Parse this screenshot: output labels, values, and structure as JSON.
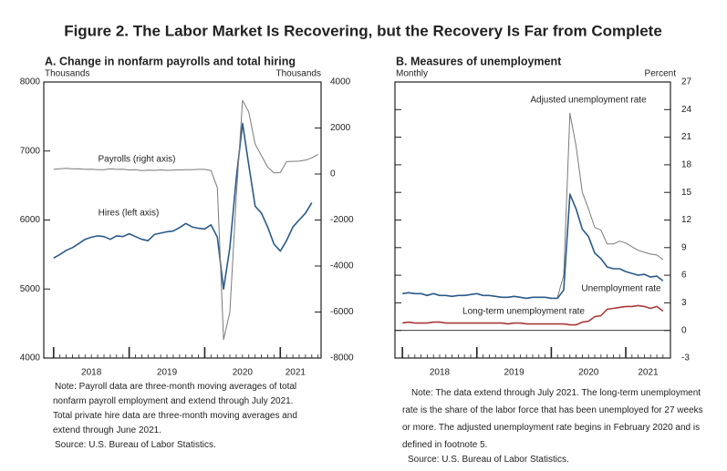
{
  "figure_title": "Figure 2. The Labor Market Is Recovering, but the Recovery Is Far from Complete",
  "chart_data": [
    {
      "type": "line",
      "title": "A. Change in nonfarm payrolls and total hiring",
      "y_label": "Thousands",
      "y2_label": "Thousands",
      "y_tick_color": "#2b5a8a",
      "x": [
        2018,
        2018.083,
        2018.167,
        2018.25,
        2018.333,
        2018.417,
        2018.5,
        2018.583,
        2018.667,
        2018.75,
        2018.833,
        2018.917,
        2019,
        2019.083,
        2019.167,
        2019.25,
        2019.333,
        2019.417,
        2019.5,
        2019.583,
        2019.667,
        2019.75,
        2019.833,
        2019.917,
        2020,
        2020.083,
        2020.167,
        2020.25,
        2020.333,
        2020.417,
        2020.5,
        2020.583,
        2020.667,
        2020.75,
        2020.833,
        2020.917,
        2021,
        2021.083,
        2021.167,
        2021.25,
        2021.333,
        2021.417,
        2021.5
      ],
      "xlim": [
        2017.87,
        2021.54
      ],
      "xticks": [
        {
          "value": 2018.5,
          "label": "2018"
        },
        {
          "value": 2019.5,
          "label": "2019"
        },
        {
          "value": 2020.5,
          "label": "2020"
        },
        {
          "value": 2021.2,
          "label": "2021"
        }
      ],
      "ylim": [
        4000,
        8000
      ],
      "yticks": [
        4000,
        5000,
        6000,
        7000,
        8000
      ],
      "y2lim": [
        -8000,
        4000
      ],
      "y2ticks": [
        -8000,
        -6000,
        -4000,
        -2000,
        0,
        2000,
        4000
      ],
      "series": [
        {
          "name": "Hires (left axis)",
          "color": "#2b5a8a",
          "width": 1.6,
          "axis": "y",
          "values": [
            5450,
            5500,
            5560,
            5600,
            5660,
            5720,
            5750,
            5770,
            5760,
            5720,
            5770,
            5760,
            5800,
            5760,
            5720,
            5700,
            5790,
            5810,
            5830,
            5840,
            5890,
            5950,
            5900,
            5880,
            5870,
            5930,
            5750,
            5000,
            5600,
            6600,
            7400,
            6800,
            6200,
            6100,
            5900,
            5650,
            5550,
            5700,
            5900,
            6000,
            6100,
            6250,
            null
          ]
        },
        {
          "name": "Payrolls (right axis)",
          "color": "#7a7a7a",
          "label_color": "#222",
          "width": 1,
          "axis": "y2",
          "values": [
            200,
            230,
            250,
            220,
            230,
            200,
            210,
            190,
            190,
            220,
            200,
            210,
            180,
            190,
            150,
            170,
            160,
            180,
            160,
            170,
            180,
            190,
            190,
            200,
            200,
            150,
            -600,
            -7200,
            -6000,
            -1000,
            3200,
            2700,
            1300,
            800,
            300,
            50,
            60,
            540,
            550,
            560,
            600,
            700,
            850
          ]
        }
      ],
      "note": "Note: Payroll data are three-month moving averages of total nonfarm payroll employment and extend through July 2021. Total private hire data are three-month moving averages and extend through June 2021.",
      "source": "Source: U.S. Bureau of Labor Statistics."
    },
    {
      "type": "line",
      "title": "B. Measures of unemployment",
      "x_label": "Monthly",
      "y_label": "Percent",
      "y_axis_side": "right",
      "zero_line": true,
      "x": [
        2018,
        2018.083,
        2018.167,
        2018.25,
        2018.333,
        2018.417,
        2018.5,
        2018.583,
        2018.667,
        2018.75,
        2018.833,
        2018.917,
        2019,
        2019.083,
        2019.167,
        2019.25,
        2019.333,
        2019.417,
        2019.5,
        2019.583,
        2019.667,
        2019.75,
        2019.833,
        2019.917,
        2020,
        2020.083,
        2020.167,
        2020.25,
        2020.333,
        2020.417,
        2020.5,
        2020.583,
        2020.667,
        2020.75,
        2020.833,
        2020.917,
        2021,
        2021.083,
        2021.167,
        2021.25,
        2021.333,
        2021.417,
        2021.5
      ],
      "xlim": [
        2017.9,
        2021.6
      ],
      "xticks": [
        {
          "value": 2018.5,
          "label": "2018"
        },
        {
          "value": 2019.5,
          "label": "2019"
        },
        {
          "value": 2020.5,
          "label": "2020"
        },
        {
          "value": 2021.3,
          "label": "2021"
        }
      ],
      "ylim": [
        -3,
        27
      ],
      "yticks": [
        -3,
        0,
        3,
        6,
        9,
        12,
        15,
        18,
        21,
        24,
        27
      ],
      "series": [
        {
          "name": "Adjusted unemployment rate",
          "color": "#7a7a7a",
          "label_color": "#222",
          "width": 1,
          "values": [
            null,
            null,
            null,
            null,
            null,
            null,
            null,
            null,
            null,
            null,
            null,
            null,
            null,
            null,
            null,
            null,
            null,
            null,
            null,
            null,
            null,
            null,
            null,
            null,
            null,
            3.6,
            6.0,
            23.6,
            20.0,
            15.0,
            13.2,
            11.2,
            10.9,
            9.4,
            9.4,
            9.7,
            9.5,
            9.1,
            8.7,
            8.5,
            8.3,
            8.2,
            7.7
          ]
        },
        {
          "name": "Unemployment rate",
          "color": "#2b5a8a",
          "width": 1.6,
          "values": [
            4.0,
            4.1,
            4.0,
            4.0,
            3.8,
            4.0,
            3.8,
            3.8,
            3.7,
            3.8,
            3.8,
            3.9,
            4.0,
            3.8,
            3.8,
            3.7,
            3.6,
            3.6,
            3.7,
            3.6,
            3.5,
            3.6,
            3.6,
            3.6,
            3.5,
            3.5,
            4.4,
            14.8,
            13.2,
            11.0,
            10.2,
            8.4,
            7.8,
            6.9,
            6.7,
            6.7,
            6.4,
            6.2,
            6.0,
            6.1,
            5.8,
            5.9,
            5.4
          ]
        },
        {
          "name": "Long-term unemployment rate",
          "color": "#a83a3a",
          "width": 1.6,
          "values": [
            0.8,
            0.9,
            0.8,
            0.8,
            0.8,
            0.9,
            0.9,
            0.8,
            0.8,
            0.8,
            0.8,
            0.8,
            0.8,
            0.8,
            0.8,
            0.8,
            0.8,
            0.7,
            0.8,
            0.8,
            0.7,
            0.7,
            0.7,
            0.7,
            0.7,
            0.7,
            0.7,
            0.6,
            0.6,
            0.9,
            1.0,
            1.5,
            1.6,
            2.3,
            2.4,
            2.5,
            2.6,
            2.6,
            2.7,
            2.6,
            2.4,
            2.6,
            2.1
          ]
        }
      ],
      "note": "Note: The data extend through July 2021. The long-term unemployment rate is the share of the labor force that has been unemployed for 27 weeks or more. The adjusted unemployment rate begins in February 2020 and is defined in footnote 5.",
      "source": "Source: U.S. Bureau of Labor Statistics."
    }
  ]
}
